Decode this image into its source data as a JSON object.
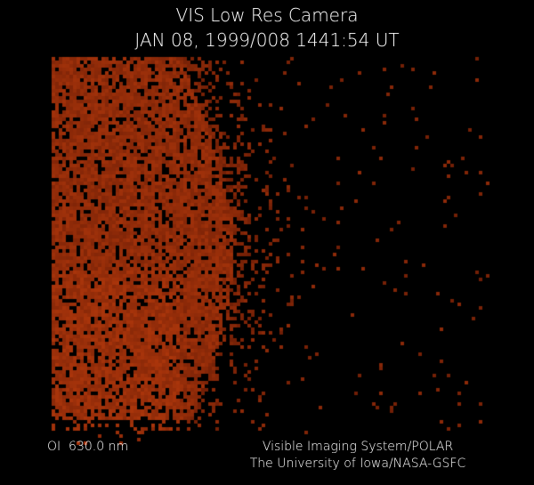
{
  "header": {
    "title": "VIS Low Res Camera",
    "timestamp": "JAN 08, 1999/008 1441:54 UT"
  },
  "footer": {
    "filter": "OI  630.0 nm",
    "instrument": "Visible Imaging System/POLAR",
    "institution": "The University of Iowa/NASA-GSFC"
  },
  "colors": {
    "background": "#000000",
    "emission_dim": "#5a1503",
    "emission_bright": "#a8380a",
    "text": "#ffffff"
  }
}
